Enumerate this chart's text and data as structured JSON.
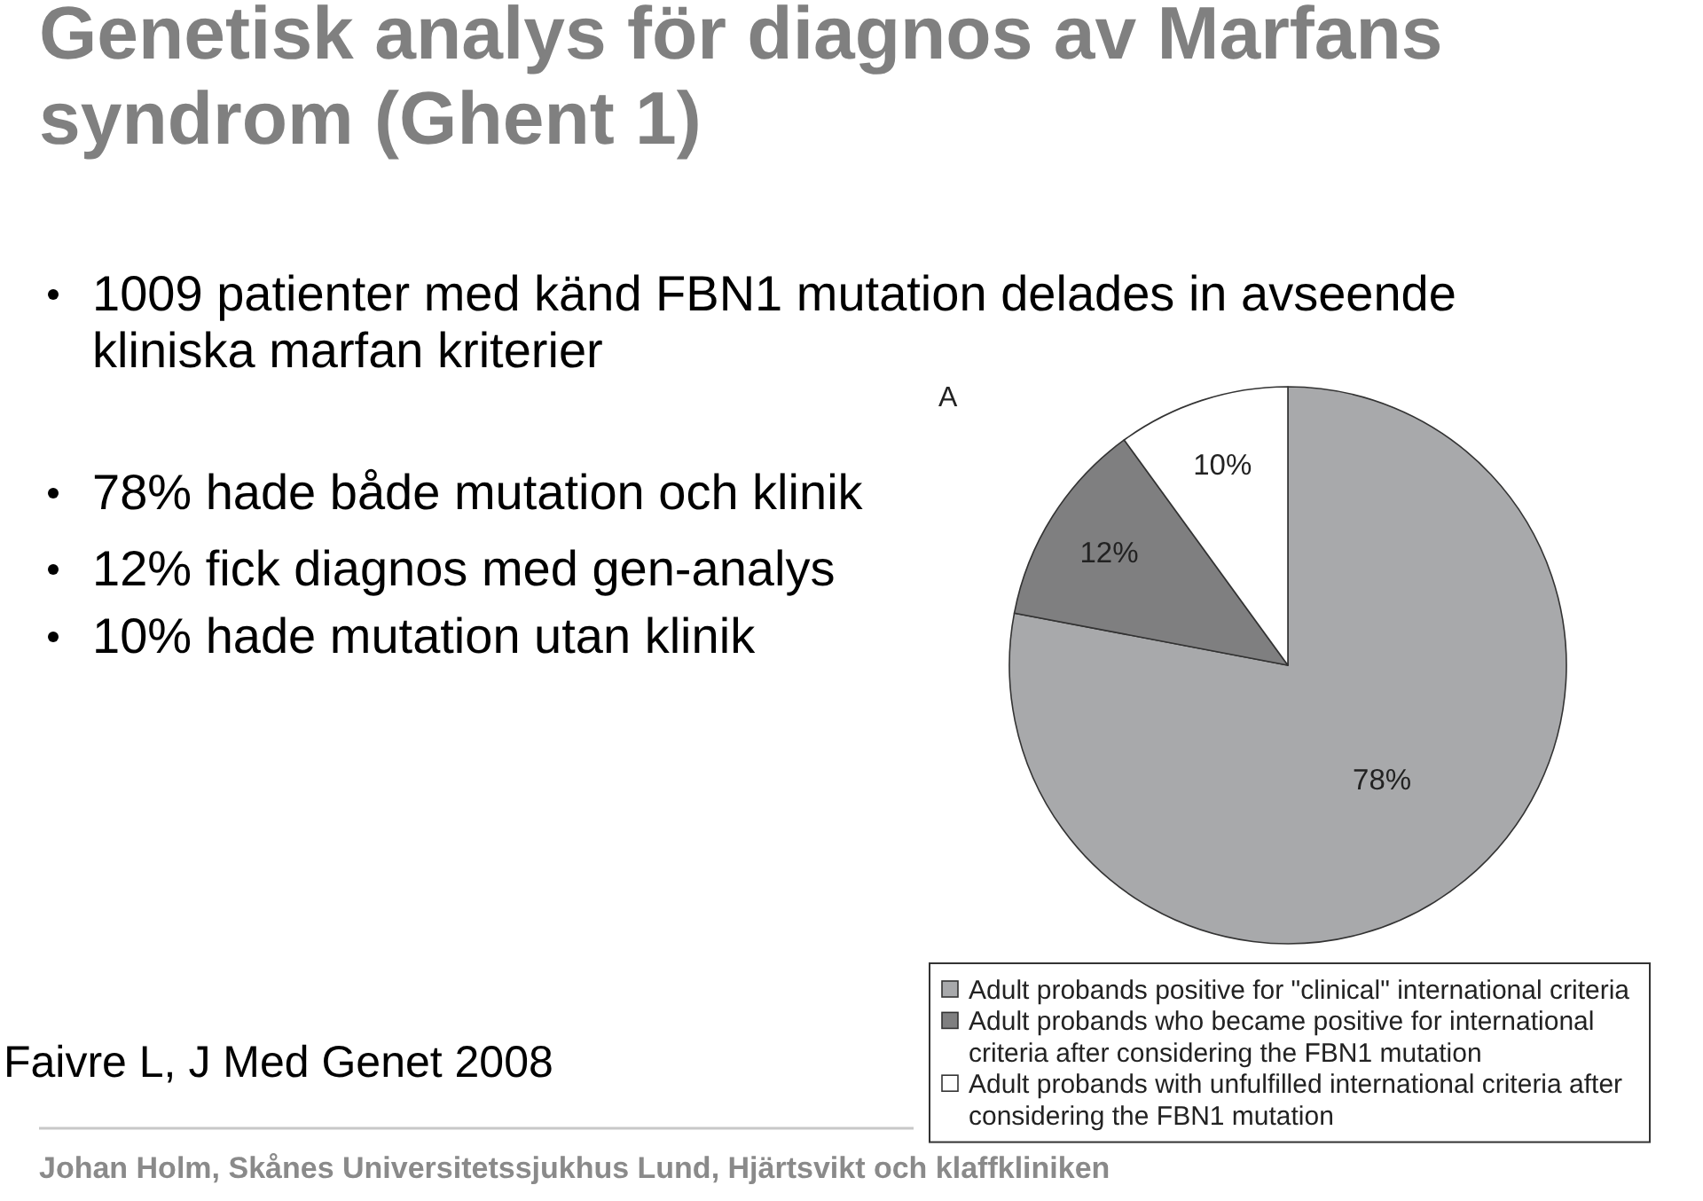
{
  "chart_data": {
    "type": "pie",
    "title": "Genetisk analys för diagnos av Marfans syndrom (Ghent 1)",
    "categories": [
      "Adult probands positive for \"clinical\" international criteria",
      "Adult probands who became positive for international criteria after considering the FBN1 mutation",
      "Adult probands with unfulfilled international criteria after considering the FBN1 mutation"
    ],
    "values": [
      78,
      12,
      10
    ],
    "colors": [
      "#a8a9ab",
      "#7f7f80",
      "#ffffff"
    ],
    "value_labels": [
      "78%",
      "12%",
      "10%"
    ],
    "legend": "bottom",
    "annotations": [
      "1009 patienter med känd FBN1 mutation delades in avseende kliniska marfan kriterier",
      "78% hade både mutation och klinik",
      "12% fick diagnos med gen-analys",
      "10% hade mutation utan klinik",
      "A",
      "Faivre L, J Med Genet 2008",
      "Johan Holm, Skånes Universitetssjukhus Lund, Hjärtsvikt och klaffkliniken"
    ]
  }
}
